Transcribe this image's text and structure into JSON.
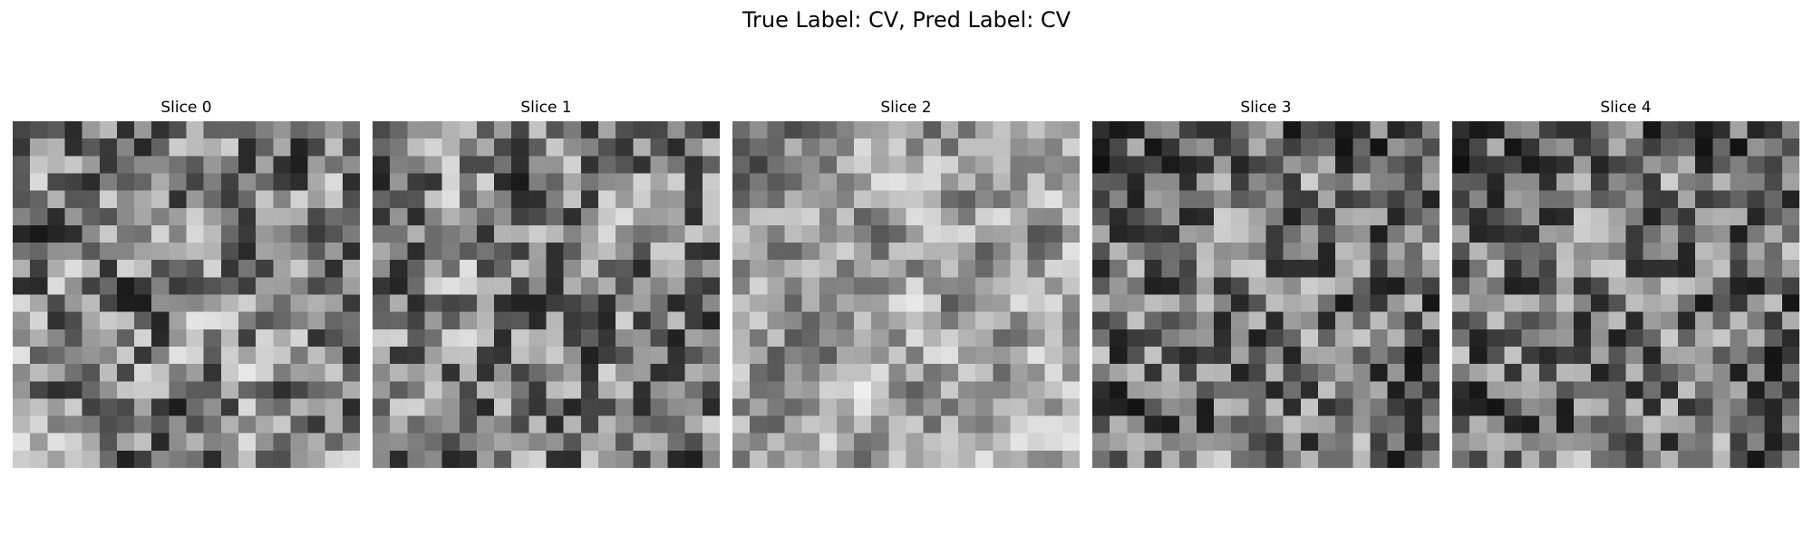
{
  "figure": {
    "title": "True Label: CV, Pred Label: CV"
  },
  "slices": [
    {
      "label": "Slice 0"
    },
    {
      "label": "Slice 1"
    },
    {
      "label": "Slice 2"
    },
    {
      "label": "Slice 3"
    },
    {
      "label": "Slice 4"
    }
  ],
  "image": {
    "colormap": "gray",
    "grid": "20x20"
  }
}
